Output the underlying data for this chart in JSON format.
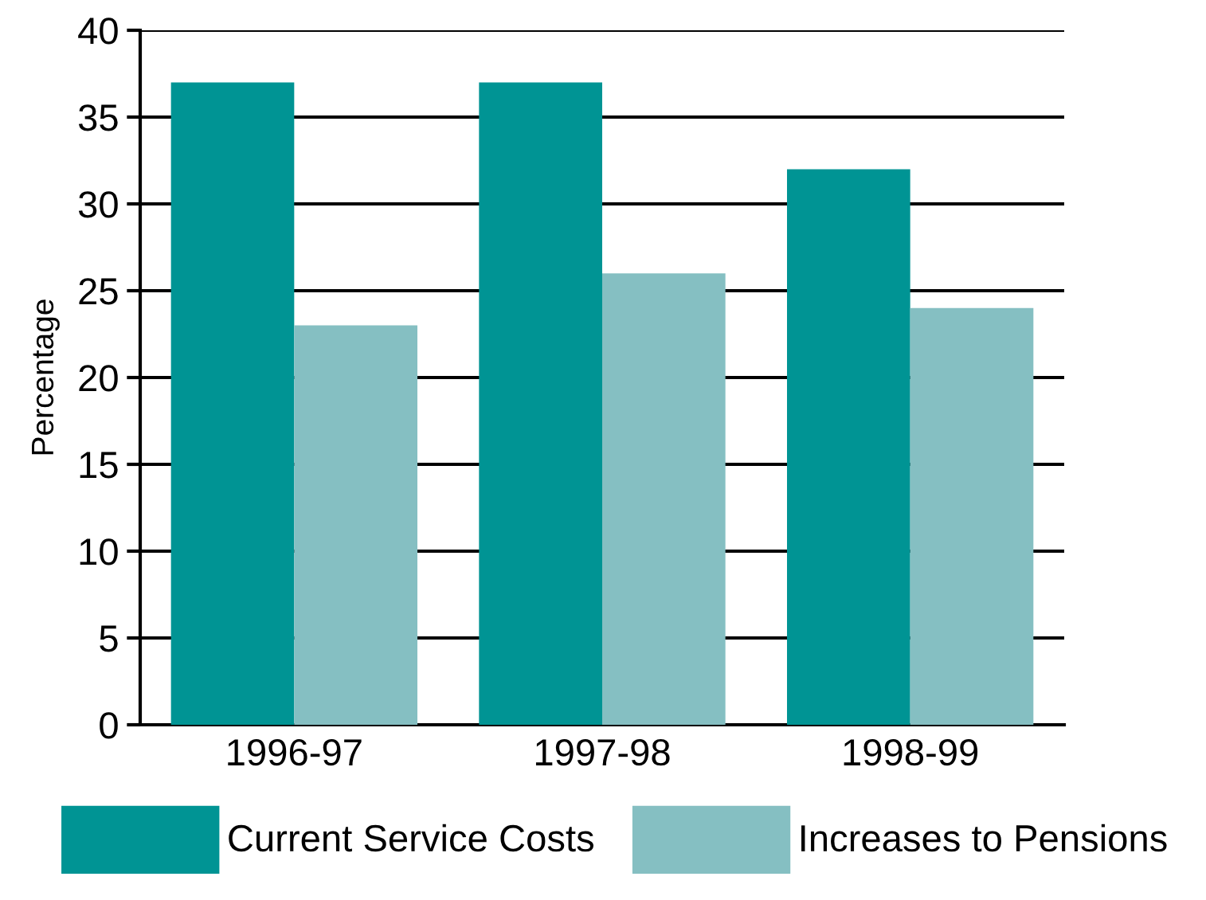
{
  "chart_data": {
    "type": "bar",
    "ylabel": "Percentage",
    "categories": [
      "1996-97",
      "1997-98",
      "1998-99"
    ],
    "series": [
      {
        "name": "Current Service Costs",
        "color": "#009494",
        "values": [
          37,
          37,
          32
        ]
      },
      {
        "name": "Increases to Pensions",
        "color": "#85bfc2",
        "values": [
          23,
          26,
          24
        ]
      }
    ],
    "ylim": [
      0,
      40
    ],
    "yticks": [
      0,
      5,
      10,
      15,
      20,
      25,
      30,
      35,
      40
    ],
    "grid": "y",
    "legend": "bottom"
  }
}
